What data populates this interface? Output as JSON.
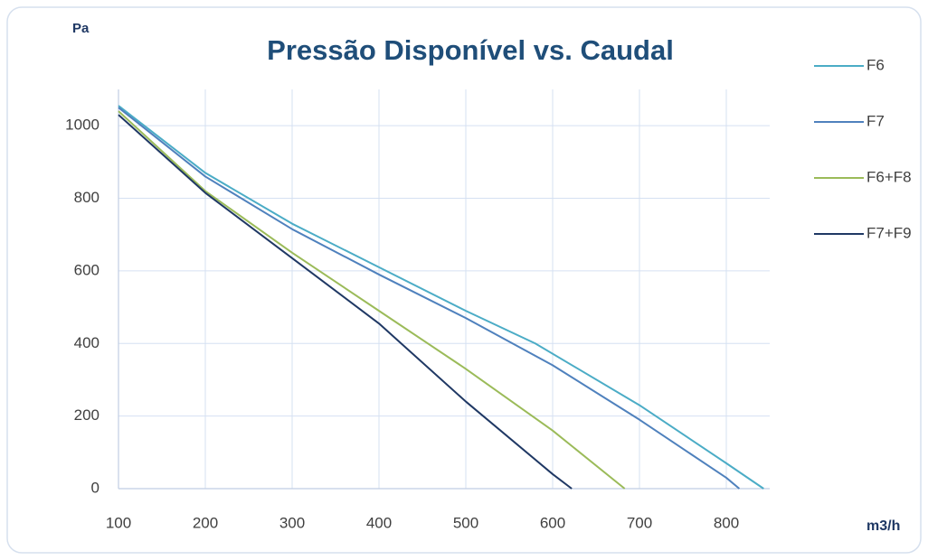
{
  "chart_data": {
    "type": "line",
    "title": "Pressão Disponível vs. Caudal",
    "y_label": "Pa",
    "x_label": "m3/h",
    "xlim": [
      100,
      850
    ],
    "xticks": [
      100,
      200,
      300,
      400,
      500,
      600,
      700,
      800
    ],
    "ylim": [
      0,
      1100
    ],
    "yticks": [
      0,
      200,
      400,
      600,
      800,
      1000
    ],
    "grid": true,
    "legend": "right",
    "series": [
      {
        "name": "F6",
        "color": "#4bacc6",
        "x": [
          100,
          200,
          300,
          400,
          500,
          580,
          700,
          800,
          843
        ],
        "values": [
          1055,
          870,
          730,
          610,
          490,
          400,
          230,
          70,
          0
        ]
      },
      {
        "name": "F7",
        "color": "#4f81bd",
        "x": [
          100,
          200,
          300,
          400,
          500,
          600,
          700,
          800,
          815
        ],
        "values": [
          1050,
          860,
          715,
          590,
          470,
          340,
          190,
          30,
          0
        ]
      },
      {
        "name": "F6+F8",
        "color": "#9bbb59",
        "x": [
          100,
          200,
          300,
          400,
          500,
          600,
          683
        ],
        "values": [
          1040,
          820,
          650,
          490,
          330,
          160,
          0
        ]
      },
      {
        "name": "F7+F9",
        "color": "#1f3864",
        "x": [
          100,
          200,
          300,
          400,
          500,
          600,
          622
        ],
        "values": [
          1030,
          815,
          635,
          455,
          240,
          40,
          0
        ]
      }
    ]
  }
}
